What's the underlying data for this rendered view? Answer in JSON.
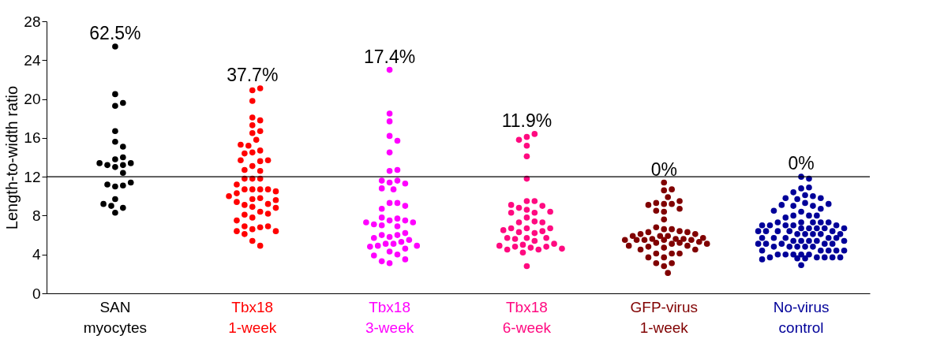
{
  "chart_data": {
    "type": "scatter",
    "ylabel": "Length-to-width ratio",
    "marker": "circle",
    "grid": false,
    "ylim": [
      0,
      28
    ],
    "yticks": [
      0,
      4,
      8,
      12,
      16,
      20,
      24,
      28
    ],
    "categories": [
      "SAN\nmyocytes",
      "Tbx18\n1-week",
      "Tbx18\n3-week",
      "Tbx18\n6-week",
      "GFP-virus\n1-week",
      "No-virus\ncontrol"
    ],
    "ref_lines": [
      {
        "axis": "y",
        "value": 12,
        "color": "#000000",
        "line_style": "solid"
      }
    ],
    "annotations": [
      "62.5%",
      "37.7%",
      "17.4%",
      "11.9%",
      "0%",
      "0%"
    ],
    "series": [
      {
        "color": "#000000",
        "x": [
          "SAN\nmyocytes",
          "SAN\nmyocytes",
          "SAN\nmyocytes",
          "SAN\nmyocytes",
          "SAN\nmyocytes",
          "SAN\nmyocytes",
          "SAN\nmyocytes",
          "SAN\nmyocytes",
          "SAN\nmyocytes",
          "SAN\nmyocytes",
          "SAN\nmyocytes",
          "SAN\nmyocytes",
          "SAN\nmyocytes",
          "SAN\nmyocytes",
          "SAN\nmyocytes",
          "SAN\nmyocytes",
          "SAN\nmyocytes",
          "SAN\nmyocytes",
          "SAN\nmyocytes",
          "SAN\nmyocytes",
          "SAN\nmyocytes",
          "SAN\nmyocytes",
          "SAN\nmyocytes",
          "SAN\nmyocytes"
        ],
        "values": [
          25.4,
          19.3,
          19.6,
          20.5,
          16.7,
          15.6,
          15.1,
          13.8,
          14.0,
          13.0,
          13.2,
          13.2,
          13.4,
          13.4,
          12.4,
          11.0,
          11.1,
          11.2,
          11.4,
          8.3,
          8.8,
          9.0,
          9.2,
          9.7
        ]
      },
      {
        "color": "#ff0000",
        "x": [
          "Tbx18\n1-week",
          "Tbx18\n1-week",
          "Tbx18\n1-week",
          "Tbx18\n1-week",
          "Tbx18\n1-week",
          "Tbx18\n1-week",
          "Tbx18\n1-week",
          "Tbx18\n1-week",
          "Tbx18\n1-week",
          "Tbx18\n1-week",
          "Tbx18\n1-week",
          "Tbx18\n1-week",
          "Tbx18\n1-week",
          "Tbx18\n1-week",
          "Tbx18\n1-week",
          "Tbx18\n1-week",
          "Tbx18\n1-week",
          "Tbx18\n1-week",
          "Tbx18\n1-week",
          "Tbx18\n1-week",
          "Tbx18\n1-week",
          "Tbx18\n1-week",
          "Tbx18\n1-week",
          "Tbx18\n1-week",
          "Tbx18\n1-week",
          "Tbx18\n1-week",
          "Tbx18\n1-week",
          "Tbx18\n1-week",
          "Tbx18\n1-week",
          "Tbx18\n1-week",
          "Tbx18\n1-week",
          "Tbx18\n1-week",
          "Tbx18\n1-week",
          "Tbx18\n1-week",
          "Tbx18\n1-week",
          "Tbx18\n1-week",
          "Tbx18\n1-week",
          "Tbx18\n1-week",
          "Tbx18\n1-week",
          "Tbx18\n1-week",
          "Tbx18\n1-week",
          "Tbx18\n1-week",
          "Tbx18\n1-week",
          "Tbx18\n1-week",
          "Tbx18\n1-week",
          "Tbx18\n1-week",
          "Tbx18\n1-week",
          "Tbx18\n1-week",
          "Tbx18\n1-week",
          "Tbx18\n1-week",
          "Tbx18\n1-week",
          "Tbx18\n1-week",
          "Tbx18\n1-week"
        ],
        "values": [
          20.9,
          21.1,
          19.8,
          16.5,
          16.7,
          17.3,
          17.8,
          18.1,
          14.5,
          14.7,
          15.2,
          15.3,
          15.8,
          14.4,
          13.1,
          13.6,
          13.7,
          13.7,
          12.6,
          12.7,
          11.8,
          11.8,
          11.8,
          10.7,
          10.7,
          10.7,
          10.7,
          10.3,
          10.5,
          11.2,
          9.7,
          9.8,
          10.0,
          8.9,
          9.1,
          9.2,
          9.4,
          8.4,
          8.8,
          9.6,
          7.8,
          8.1,
          8.2,
          6.6,
          6.8,
          6.9,
          6.9,
          6.4,
          6.4,
          7.5,
          6.1,
          5.4,
          4.9
        ]
      },
      {
        "color": "#ff00ff",
        "x": [
          "Tbx18\n3-week",
          "Tbx18\n3-week",
          "Tbx18\n3-week",
          "Tbx18\n3-week",
          "Tbx18\n3-week",
          "Tbx18\n3-week",
          "Tbx18\n3-week",
          "Tbx18\n3-week",
          "Tbx18\n3-week",
          "Tbx18\n3-week",
          "Tbx18\n3-week",
          "Tbx18\n3-week",
          "Tbx18\n3-week",
          "Tbx18\n3-week",
          "Tbx18\n3-week",
          "Tbx18\n3-week",
          "Tbx18\n3-week",
          "Tbx18\n3-week",
          "Tbx18\n3-week",
          "Tbx18\n3-week",
          "Tbx18\n3-week",
          "Tbx18\n3-week",
          "Tbx18\n3-week",
          "Tbx18\n3-week",
          "Tbx18\n3-week",
          "Tbx18\n3-week",
          "Tbx18\n3-week",
          "Tbx18\n3-week",
          "Tbx18\n3-week",
          "Tbx18\n3-week",
          "Tbx18\n3-week",
          "Tbx18\n3-week",
          "Tbx18\n3-week",
          "Tbx18\n3-week",
          "Tbx18\n3-week",
          "Tbx18\n3-week",
          "Tbx18\n3-week",
          "Tbx18\n3-week",
          "Tbx18\n3-week",
          "Tbx18\n3-week",
          "Tbx18\n3-week",
          "Tbx18\n3-week",
          "Tbx18\n3-week",
          "Tbx18\n3-week",
          "Tbx18\n3-week",
          "Tbx18\n3-week"
        ],
        "values": [
          23.0,
          18.5,
          17.7,
          16.2,
          15.7,
          14.5,
          12.6,
          12.7,
          11.4,
          11.6,
          11.6,
          11.3,
          10.7,
          10.8,
          9.3,
          9.3,
          8.7,
          9.0,
          7.5,
          7.7,
          7.8,
          7.5,
          7.0,
          7.1,
          7.3,
          7.3,
          6.9,
          5.8,
          6.0,
          6.0,
          6.2,
          5.7,
          5.1,
          5.1,
          5.3,
          5.5,
          4.9,
          4.3,
          4.6,
          4.8,
          4.9,
          4.0,
          3.1,
          3.3,
          3.5,
          3.9
        ]
      },
      {
        "color": "#ff0a80",
        "x": [
          "Tbx18\n6-week",
          "Tbx18\n6-week",
          "Tbx18\n6-week",
          "Tbx18\n6-week",
          "Tbx18\n6-week",
          "Tbx18\n6-week",
          "Tbx18\n6-week",
          "Tbx18\n6-week",
          "Tbx18\n6-week",
          "Tbx18\n6-week",
          "Tbx18\n6-week",
          "Tbx18\n6-week",
          "Tbx18\n6-week",
          "Tbx18\n6-week",
          "Tbx18\n6-week",
          "Tbx18\n6-week",
          "Tbx18\n6-week",
          "Tbx18\n6-week",
          "Tbx18\n6-week",
          "Tbx18\n6-week",
          "Tbx18\n6-week",
          "Tbx18\n6-week",
          "Tbx18\n6-week",
          "Tbx18\n6-week",
          "Tbx18\n6-week",
          "Tbx18\n6-week",
          "Tbx18\n6-week",
          "Tbx18\n6-week",
          "Tbx18\n6-week",
          "Tbx18\n6-week",
          "Tbx18\n6-week",
          "Tbx18\n6-week",
          "Tbx18\n6-week",
          "Tbx18\n6-week",
          "Tbx18\n6-week",
          "Tbx18\n6-week",
          "Tbx18\n6-week",
          "Tbx18\n6-week",
          "Tbx18\n6-week",
          "Tbx18\n6-week",
          "Tbx18\n6-week",
          "Tbx18\n6-week"
        ],
        "values": [
          16.1,
          16.4,
          15.8,
          15.2,
          14.1,
          11.8,
          9.5,
          9.5,
          8.6,
          8.8,
          9.0,
          9.1,
          8.3,
          8.3,
          8.4,
          7.8,
          7.4,
          7.3,
          7.3,
          6.7,
          6.7,
          6.7,
          6.2,
          6.3,
          6.4,
          6.5,
          5.7,
          5.6,
          5.7,
          5.7,
          5.4,
          5.1,
          5.0,
          4.7,
          4.8,
          4.5,
          4.8,
          4.5,
          4.9,
          4.6,
          4.2,
          2.8
        ]
      },
      {
        "color": "#800000",
        "x": [
          "GFP-virus\n1-week",
          "GFP-virus\n1-week",
          "GFP-virus\n1-week",
          "GFP-virus\n1-week",
          "GFP-virus\n1-week",
          "GFP-virus\n1-week",
          "GFP-virus\n1-week",
          "GFP-virus\n1-week",
          "GFP-virus\n1-week",
          "GFP-virus\n1-week",
          "GFP-virus\n1-week",
          "GFP-virus\n1-week",
          "GFP-virus\n1-week",
          "GFP-virus\n1-week",
          "GFP-virus\n1-week",
          "GFP-virus\n1-week",
          "GFP-virus\n1-week",
          "GFP-virus\n1-week",
          "GFP-virus\n1-week",
          "GFP-virus\n1-week",
          "GFP-virus\n1-week",
          "GFP-virus\n1-week",
          "GFP-virus\n1-week",
          "GFP-virus\n1-week",
          "GFP-virus\n1-week",
          "GFP-virus\n1-week",
          "GFP-virus\n1-week",
          "GFP-virus\n1-week",
          "GFP-virus\n1-week",
          "GFP-virus\n1-week",
          "GFP-virus\n1-week",
          "GFP-virus\n1-week",
          "GFP-virus\n1-week",
          "GFP-virus\n1-week",
          "GFP-virus\n1-week",
          "GFP-virus\n1-week",
          "GFP-virus\n1-week",
          "GFP-virus\n1-week",
          "GFP-virus\n1-week",
          "GFP-virus\n1-week",
          "GFP-virus\n1-week",
          "GFP-virus\n1-week",
          "GFP-virus\n1-week",
          "GFP-virus\n1-week",
          "GFP-virus\n1-week",
          "GFP-virus\n1-week",
          "GFP-virus\n1-week",
          "GFP-virus\n1-week",
          "GFP-virus\n1-week",
          "GFP-virus\n1-week",
          "GFP-virus\n1-week",
          "GFP-virus\n1-week",
          "GFP-virus\n1-week"
        ],
        "values": [
          11.4,
          10.6,
          10.7,
          9.2,
          9.2,
          9.3,
          9.5,
          9.9,
          9.1,
          8.4,
          8.5,
          8.7,
          7.6,
          6.6,
          6.6,
          6.8,
          6.4,
          6.3,
          6.3,
          5.9,
          5.9,
          6.1,
          6.1,
          5.9,
          5.6,
          5.6,
          5.6,
          5.7,
          5.5,
          5.5,
          5.5,
          5.5,
          5.5,
          5.3,
          5.1,
          5.1,
          5.2,
          5.2,
          4.8,
          4.9,
          4.9,
          4.7,
          4.5,
          4.5,
          4.1,
          4.1,
          4.1,
          3.7,
          3.7,
          2.8,
          3.1,
          3.1,
          2.1
        ]
      },
      {
        "color": "#000099",
        "x": [
          "No-virus\ncontrol",
          "No-virus\ncontrol",
          "No-virus\ncontrol",
          "No-virus\ncontrol",
          "No-virus\ncontrol",
          "No-virus\ncontrol",
          "No-virus\ncontrol",
          "No-virus\ncontrol",
          "No-virus\ncontrol",
          "No-virus\ncontrol",
          "No-virus\ncontrol",
          "No-virus\ncontrol",
          "No-virus\ncontrol",
          "No-virus\ncontrol",
          "No-virus\ncontrol",
          "No-virus\ncontrol",
          "No-virus\ncontrol",
          "No-virus\ncontrol",
          "No-virus\ncontrol",
          "No-virus\ncontrol",
          "No-virus\ncontrol",
          "No-virus\ncontrol",
          "No-virus\ncontrol",
          "No-virus\ncontrol",
          "No-virus\ncontrol",
          "No-virus\ncontrol",
          "No-virus\ncontrol",
          "No-virus\ncontrol",
          "No-virus\ncontrol",
          "No-virus\ncontrol",
          "No-virus\ncontrol",
          "No-virus\ncontrol",
          "No-virus\ncontrol",
          "No-virus\ncontrol",
          "No-virus\ncontrol",
          "No-virus\ncontrol",
          "No-virus\ncontrol",
          "No-virus\ncontrol",
          "No-virus\ncontrol",
          "No-virus\ncontrol",
          "No-virus\ncontrol",
          "No-virus\ncontrol",
          "No-virus\ncontrol",
          "No-virus\ncontrol",
          "No-virus\ncontrol",
          "No-virus\ncontrol",
          "No-virus\ncontrol",
          "No-virus\ncontrol",
          "No-virus\ncontrol",
          "No-virus\ncontrol",
          "No-virus\ncontrol",
          "No-virus\ncontrol",
          "No-virus\ncontrol",
          "No-virus\ncontrol",
          "No-virus\ncontrol",
          "No-virus\ncontrol",
          "No-virus\ncontrol",
          "No-virus\ncontrol",
          "No-virus\ncontrol",
          "No-virus\ncontrol",
          "No-virus\ncontrol",
          "No-virus\ncontrol",
          "No-virus\ncontrol",
          "No-virus\ncontrol",
          "No-virus\ncontrol",
          "No-virus\ncontrol",
          "No-virus\ncontrol",
          "No-virus\ncontrol",
          "No-virus\ncontrol",
          "No-virus\ncontrol",
          "No-virus\ncontrol",
          "No-virus\ncontrol",
          "No-virus\ncontrol",
          "No-virus\ncontrol",
          "No-virus\ncontrol",
          "No-virus\ncontrol",
          "No-virus\ncontrol",
          "No-virus\ncontrol",
          "No-virus\ncontrol",
          "No-virus\ncontrol",
          "No-virus\ncontrol",
          "No-virus\ncontrol",
          "No-virus\ncontrol",
          "No-virus\ncontrol",
          "No-virus\ncontrol",
          "No-virus\ncontrol"
        ],
        "values": [
          12.0,
          11.8,
          10.8,
          10.9,
          10.4,
          10.1,
          10.0,
          9.7,
          9.8,
          9.8,
          9.3,
          9.0,
          9.0,
          9.1,
          9.2,
          8.7,
          8.4,
          8.5,
          8.0,
          8.0,
          8.0,
          7.8,
          7.3,
          7.3,
          7.3,
          7.3,
          7.3,
          7.0,
          7.0,
          7.0,
          7.0,
          7.0,
          6.7,
          6.7,
          6.7,
          6.7,
          6.7,
          6.4,
          6.4,
          6.4,
          6.4,
          6.4,
          6.1,
          6.1,
          6.1,
          6.1,
          6.1,
          5.7,
          5.7,
          5.7,
          5.7,
          5.7,
          5.4,
          5.4,
          5.4,
          5.4,
          5.4,
          5.1,
          5.1,
          5.1,
          5.1,
          5.1,
          4.8,
          4.8,
          4.8,
          4.8,
          4.8,
          4.4,
          4.4,
          4.4,
          4.4,
          4.4,
          4.0,
          4.0,
          4.0,
          4.0,
          4.0,
          3.7,
          3.7,
          3.7,
          3.7,
          3.7,
          2.9,
          3.5,
          3.6,
          3.6
        ]
      }
    ]
  }
}
